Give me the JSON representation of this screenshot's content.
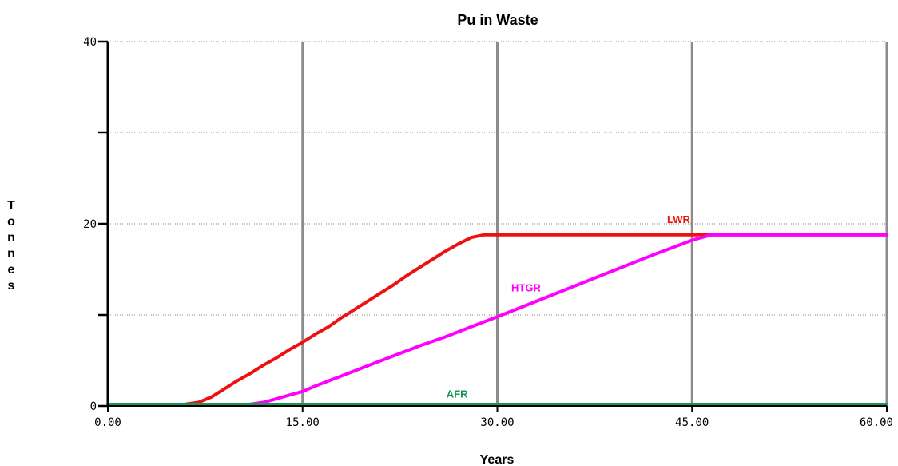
{
  "chart_data": {
    "type": "line",
    "title": "Pu in Waste",
    "xlabel": "Years",
    "ylabel": "Tonnes",
    "xlim": [
      0,
      60
    ],
    "ylim": [
      0,
      40
    ],
    "x_ticks": [
      "0.00",
      "15.00",
      "30.00",
      "45.00",
      "60.00"
    ],
    "y_ticks": [
      "0",
      "20",
      "40"
    ],
    "grid": true,
    "series": [
      {
        "name": "LWR",
        "color": "#ee1111",
        "points": [
          [
            5.5,
            0.1
          ],
          [
            7,
            0.4
          ],
          [
            8,
            1.0
          ],
          [
            9,
            1.9
          ],
          [
            10,
            2.8
          ],
          [
            11,
            3.6
          ],
          [
            12,
            4.5
          ],
          [
            13,
            5.3
          ],
          [
            14,
            6.2
          ],
          [
            15,
            7.0
          ],
          [
            16,
            7.9
          ],
          [
            17,
            8.7
          ],
          [
            18,
            9.7
          ],
          [
            19,
            10.6
          ],
          [
            20,
            11.5
          ],
          [
            21,
            12.4
          ],
          [
            22,
            13.3
          ],
          [
            23,
            14.3
          ],
          [
            24,
            15.2
          ],
          [
            25,
            16.1
          ],
          [
            26,
            17.0
          ],
          [
            27,
            17.8
          ],
          [
            28,
            18.5
          ],
          [
            29,
            18.8
          ],
          [
            30,
            18.8
          ],
          [
            60,
            18.8
          ]
        ]
      },
      {
        "name": "HTGR",
        "color": "#ff00ff",
        "points": [
          [
            10,
            0.1
          ],
          [
            11,
            0.2
          ],
          [
            12,
            0.4
          ],
          [
            13,
            0.8
          ],
          [
            14,
            1.2
          ],
          [
            15,
            1.6
          ],
          [
            16,
            2.2
          ],
          [
            18,
            3.3
          ],
          [
            20,
            4.4
          ],
          [
            22,
            5.5
          ],
          [
            24,
            6.6
          ],
          [
            26,
            7.6
          ],
          [
            28,
            8.7
          ],
          [
            30,
            9.8
          ],
          [
            33,
            11.5
          ],
          [
            36,
            13.2
          ],
          [
            39,
            14.9
          ],
          [
            42,
            16.6
          ],
          [
            45,
            18.2
          ],
          [
            46.5,
            18.8
          ],
          [
            60,
            18.8
          ]
        ]
      },
      {
        "name": "AFR",
        "color": "#119955",
        "points": [
          [
            0,
            0.2
          ],
          [
            60,
            0.2
          ]
        ]
      }
    ]
  }
}
